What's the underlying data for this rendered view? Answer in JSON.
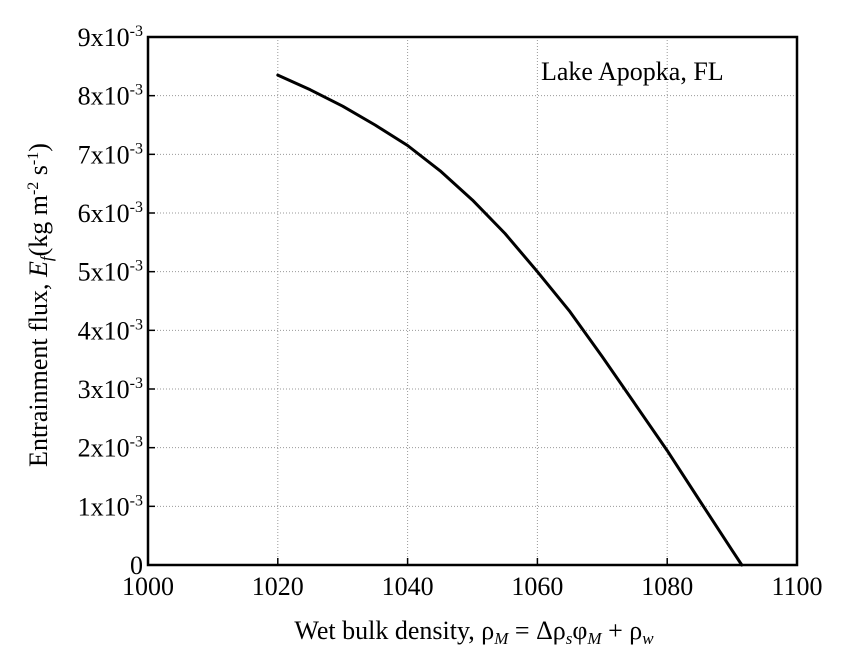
{
  "chart_data": {
    "type": "line",
    "annotation": "Lake Apopka, FL",
    "xlabel": "Wet bulk density, ρ",
    "xlabel_formula": {
      "rho_sub": "M",
      "equals": " = Δρ",
      "s_sub": "s",
      "phi": "φ",
      "phi_sub": "M",
      "plus": " + ρ",
      "w_sub": "w"
    },
    "ylabel": "Entrainment flux, ",
    "ylabel_symbol": "E",
    "ylabel_symbol_sub": "f",
    "ylabel_units": "(kg m",
    "ylabel_units_exp1": "-2",
    "ylabel_units_mid": " s",
    "ylabel_units_exp2": "-1",
    "ylabel_units_end": ")",
    "xlim": [
      1000,
      1100
    ],
    "ylim": [
      0,
      0.009
    ],
    "grid": true,
    "x_ticks": [
      {
        "value": 1000,
        "label": "1000"
      },
      {
        "value": 1020,
        "label": "1020"
      },
      {
        "value": 1040,
        "label": "1040"
      },
      {
        "value": 1060,
        "label": "1060"
      },
      {
        "value": 1080,
        "label": "1080"
      },
      {
        "value": 1100,
        "label": "1100"
      }
    ],
    "y_ticks": [
      {
        "value": 0,
        "label": "0",
        "exp": ""
      },
      {
        "value": 0.001,
        "label": "1x10",
        "exp": "-3"
      },
      {
        "value": 0.002,
        "label": "2x10",
        "exp": "-3"
      },
      {
        "value": 0.003,
        "label": "3x10",
        "exp": "-3"
      },
      {
        "value": 0.004,
        "label": "4x10",
        "exp": "-3"
      },
      {
        "value": 0.005,
        "label": "5x10",
        "exp": "-3"
      },
      {
        "value": 0.006,
        "label": "6x10",
        "exp": "-3"
      },
      {
        "value": 0.007,
        "label": "7x10",
        "exp": "-3"
      },
      {
        "value": 0.008,
        "label": "8x10",
        "exp": "-3"
      },
      {
        "value": 0.009,
        "label": "9x10",
        "exp": "-3"
      }
    ],
    "series": [
      {
        "color": "#000000",
        "x": [
          1020,
          1025,
          1030,
          1035,
          1040,
          1045,
          1050,
          1055,
          1060,
          1065,
          1070,
          1075,
          1080,
          1085,
          1090,
          1091.5
        ],
        "y": [
          0.00835,
          0.0081,
          0.00782,
          0.0075,
          0.00715,
          0.00672,
          0.00622,
          0.00565,
          0.005,
          0.00432,
          0.00355,
          0.00275,
          0.00195,
          0.0011,
          0.00025,
          0.0
        ]
      }
    ]
  }
}
